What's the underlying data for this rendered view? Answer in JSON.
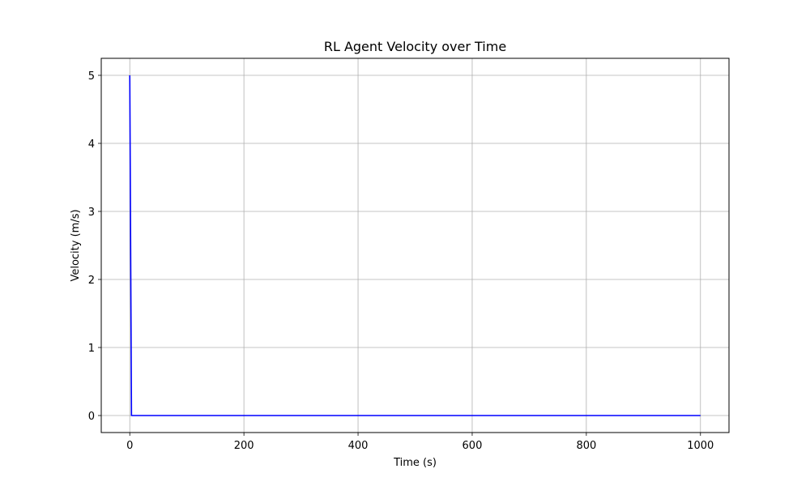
{
  "chart_data": {
    "type": "line",
    "title": "RL Agent Velocity over Time",
    "xlabel": "Time (s)",
    "ylabel": "Velocity (m/s)",
    "xlim": [
      -50,
      1050
    ],
    "ylim": [
      -0.25,
      5.25
    ],
    "xticks": [
      0,
      200,
      400,
      600,
      800,
      1000
    ],
    "yticks": [
      0,
      1,
      2,
      3,
      4,
      5
    ],
    "xtick_labels": [
      "0",
      "200",
      "400",
      "600",
      "800",
      "1000"
    ],
    "ytick_labels": [
      "0",
      "1",
      "2",
      "3",
      "4",
      "5"
    ],
    "grid": true,
    "series": [
      {
        "color": "#0000ff",
        "x": [
          0,
          3,
          1000
        ],
        "y": [
          5,
          0,
          0
        ]
      }
    ]
  }
}
